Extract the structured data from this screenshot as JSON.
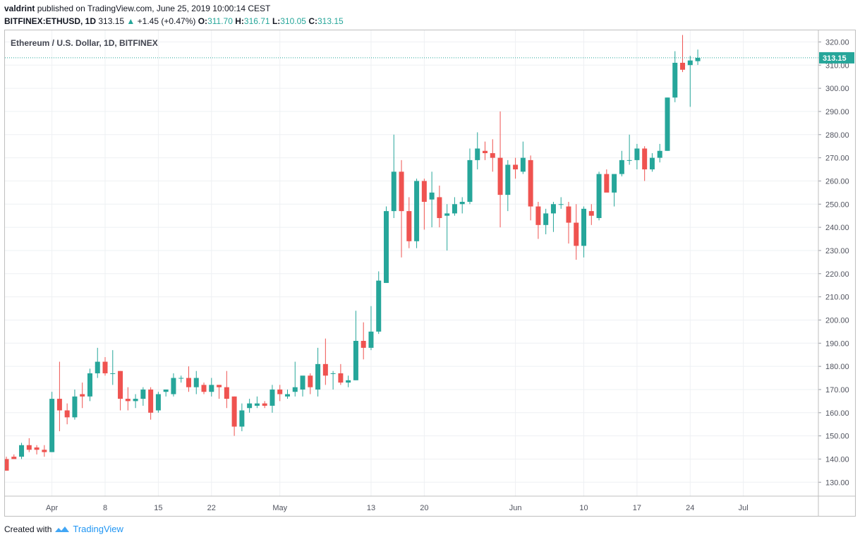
{
  "header": {
    "author": "valdrint",
    "published": "published on TradingView.com, June 25, 2019 10:00:14 CEST",
    "symbol": "BITFINEX:ETHUSD, 1D",
    "last": "313.15",
    "change_arrow": "▲",
    "change": "+1.45 (+0.47%)",
    "o_label": "O:",
    "o": "311.70",
    "h_label": "H:",
    "h": "316.71",
    "l_label": "L:",
    "l": "310.05",
    "c_label": "C:",
    "c": "313.15"
  },
  "colors": {
    "up": "#26a69a",
    "down": "#ef5350",
    "grid": "#eef0f3",
    "price_line": "#26a69a"
  },
  "footer": {
    "created_with": "Created with",
    "brand": "TradingView",
    "logo_icon": "tradingview-logo-icon"
  },
  "chart_data": {
    "type": "candlestick",
    "title": "Ethereum / U.S. Dollar, 1D, BITFINEX",
    "ylim": [
      124,
      325
    ],
    "y_ticks": [
      130,
      140,
      150,
      160,
      170,
      180,
      190,
      200,
      210,
      220,
      230,
      240,
      250,
      260,
      270,
      280,
      290,
      300,
      310,
      320
    ],
    "x_ticks": [
      {
        "label": "Apr",
        "index": 6
      },
      {
        "label": "8",
        "index": 13
      },
      {
        "label": "15",
        "index": 20
      },
      {
        "label": "22",
        "index": 27
      },
      {
        "label": "May",
        "index": 36
      },
      {
        "label": "13",
        "index": 48
      },
      {
        "label": "20",
        "index": 55
      },
      {
        "label": "Jun",
        "index": 67
      },
      {
        "label": "10",
        "index": 76
      },
      {
        "label": "17",
        "index": 83
      },
      {
        "label": "24",
        "index": 90
      },
      {
        "label": "Jul",
        "index": 97
      }
    ],
    "last_price": 313.15,
    "last_price_label": "313.15",
    "candles": [
      [
        140,
        141,
        135,
        135
      ],
      [
        141,
        142,
        140,
        140
      ],
      [
        141,
        147,
        140,
        146
      ],
      [
        146,
        149,
        143,
        144
      ],
      [
        145,
        146,
        142,
        144
      ],
      [
        144,
        146,
        141,
        143
      ],
      [
        143,
        169,
        143,
        166
      ],
      [
        166,
        182,
        152,
        161
      ],
      [
        161,
        164,
        155,
        158
      ],
      [
        158,
        170,
        157,
        167
      ],
      [
        168,
        173,
        162,
        167
      ],
      [
        167,
        179,
        165,
        177
      ],
      [
        177,
        188,
        175,
        182
      ],
      [
        182,
        184,
        176,
        177
      ],
      [
        177,
        187,
        172,
        177
      ],
      [
        178,
        178,
        161,
        166
      ],
      [
        166,
        171,
        161,
        165
      ],
      [
        165,
        168,
        162,
        166
      ],
      [
        166,
        171,
        163,
        170
      ],
      [
        170,
        171,
        157,
        160
      ],
      [
        161,
        169,
        160,
        168
      ],
      [
        169,
        170,
        167,
        170
      ],
      [
        168,
        177,
        167,
        175
      ],
      [
        175,
        176,
        173,
        175
      ],
      [
        175,
        180,
        169,
        171
      ],
      [
        171,
        178,
        168,
        175
      ],
      [
        172,
        173,
        168,
        169
      ],
      [
        169,
        175,
        167,
        172
      ],
      [
        172,
        172,
        166,
        171
      ],
      [
        171,
        178,
        162,
        166
      ],
      [
        167,
        167,
        150,
        154
      ],
      [
        154,
        164,
        152,
        161
      ],
      [
        162,
        166,
        160,
        164
      ],
      [
        163,
        167,
        162,
        164
      ],
      [
        164,
        165,
        162,
        163
      ],
      [
        163,
        172,
        160,
        170
      ],
      [
        170,
        172,
        165,
        168
      ],
      [
        167,
        170,
        166,
        168
      ],
      [
        169,
        182,
        167,
        171
      ],
      [
        170,
        175,
        167,
        176
      ],
      [
        176,
        177,
        168,
        171
      ],
      [
        170,
        188,
        167,
        181
      ],
      [
        181,
        192,
        172,
        176
      ],
      [
        177,
        178,
        170,
        177
      ],
      [
        177,
        181,
        172,
        173
      ],
      [
        173,
        176,
        171,
        174
      ],
      [
        174,
        204,
        174,
        191
      ],
      [
        191,
        199,
        183,
        188
      ],
      [
        188,
        206,
        187,
        195
      ],
      [
        195,
        221,
        194,
        217
      ],
      [
        216,
        249,
        216,
        247
      ],
      [
        247,
        280,
        244,
        264
      ],
      [
        264,
        269,
        227,
        247
      ],
      [
        247,
        253,
        231,
        234
      ],
      [
        234,
        261,
        231,
        260
      ],
      [
        260,
        261,
        239,
        251
      ],
      [
        252,
        264,
        240,
        255
      ],
      [
        253,
        258,
        240,
        244
      ],
      [
        245,
        250,
        230,
        246
      ],
      [
        246,
        253,
        245,
        250
      ],
      [
        250,
        253,
        246,
        251
      ],
      [
        251,
        274,
        250,
        269
      ],
      [
        269,
        281,
        265,
        274
      ],
      [
        273,
        277,
        269,
        272
      ],
      [
        272,
        278,
        264,
        270
      ],
      [
        270,
        290,
        240,
        254
      ],
      [
        254,
        269,
        247,
        267
      ],
      [
        267,
        270,
        261,
        265
      ],
      [
        264,
        277,
        263,
        270
      ],
      [
        269,
        271,
        243,
        249
      ],
      [
        249,
        251,
        235,
        241
      ],
      [
        241,
        248,
        237,
        246
      ],
      [
        246,
        251,
        238,
        250
      ],
      [
        250,
        253,
        248,
        250
      ],
      [
        249,
        251,
        233,
        242
      ],
      [
        242,
        250,
        226,
        232
      ],
      [
        232,
        249,
        227,
        248
      ],
      [
        247,
        250,
        241,
        245
      ],
      [
        244,
        264,
        243,
        263
      ],
      [
        263,
        265,
        256,
        255
      ],
      [
        255,
        262,
        249,
        263
      ],
      [
        263,
        273,
        262,
        269
      ],
      [
        269,
        280,
        267,
        269
      ],
      [
        269,
        276,
        265,
        274
      ],
      [
        274,
        275,
        260,
        265
      ],
      [
        265,
        272,
        264,
        270
      ],
      [
        270,
        276,
        268,
        273
      ],
      [
        273,
        296,
        273,
        296
      ],
      [
        296,
        316,
        294,
        311
      ],
      [
        311,
        323,
        307,
        308
      ],
      [
        310,
        314,
        292,
        312
      ],
      [
        311.7,
        316.71,
        310.05,
        313.15
      ]
    ]
  }
}
